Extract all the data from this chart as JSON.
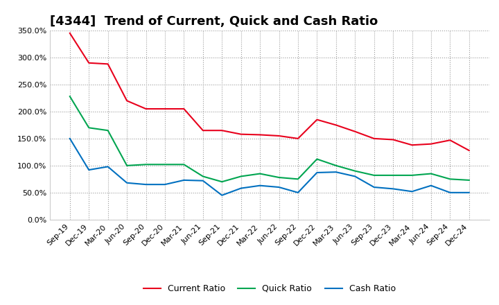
{
  "title": "[4344]  Trend of Current, Quick and Cash Ratio",
  "labels": [
    "Sep-19",
    "Dec-19",
    "Mar-20",
    "Jun-20",
    "Sep-20",
    "Dec-20",
    "Mar-21",
    "Jun-21",
    "Sep-21",
    "Dec-21",
    "Mar-22",
    "Jun-22",
    "Sep-22",
    "Dec-22",
    "Mar-23",
    "Jun-23",
    "Sep-23",
    "Dec-23",
    "Mar-24",
    "Jun-24",
    "Sep-24",
    "Dec-24"
  ],
  "current_ratio": [
    345,
    290,
    288,
    220,
    205,
    205,
    205,
    165,
    165,
    158,
    157,
    155,
    150,
    185,
    175,
    163,
    150,
    148,
    138,
    140,
    147,
    128
  ],
  "quick_ratio": [
    228,
    170,
    165,
    100,
    102,
    102,
    102,
    80,
    70,
    80,
    85,
    78,
    75,
    112,
    100,
    90,
    82,
    82,
    82,
    85,
    75,
    73
  ],
  "cash_ratio": [
    150,
    92,
    98,
    68,
    65,
    65,
    73,
    72,
    45,
    58,
    63,
    60,
    50,
    87,
    88,
    80,
    60,
    57,
    52,
    63,
    50,
    50
  ],
  "ylim": [
    0,
    350
  ],
  "yticks": [
    0,
    50,
    100,
    150,
    200,
    250,
    300,
    350
  ],
  "current_color": "#e8001c",
  "quick_color": "#00a550",
  "cash_color": "#0070c0",
  "bg_color": "#ffffff",
  "plot_bg_color": "#ffffff",
  "grid_color": "#999999",
  "legend_labels": [
    "Current Ratio",
    "Quick Ratio",
    "Cash Ratio"
  ],
  "title_fontsize": 13,
  "tick_fontsize": 8,
  "legend_fontsize": 9
}
